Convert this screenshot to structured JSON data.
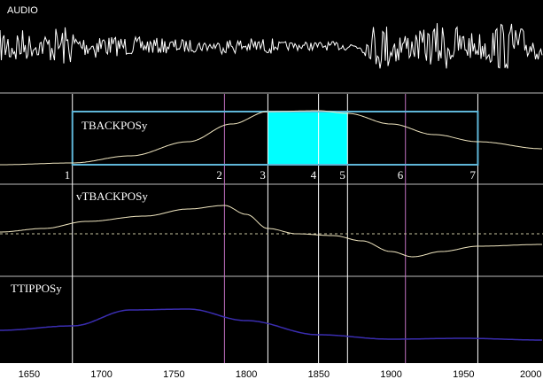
{
  "panes": {
    "audio": "AUDIO",
    "tback": "TBACKPOSy",
    "vtback": "vTBACKPOSy",
    "ttip": "TTIPPOSy"
  },
  "landmarks": [
    "1",
    "2",
    "3",
    "4",
    "5",
    "6",
    "7"
  ],
  "axis": {
    "range": [
      1630,
      2005
    ],
    "ticks": [
      "1650",
      "1700",
      "1750",
      "1800",
      "1850",
      "1900",
      "1950",
      "2000"
    ]
  },
  "landmark_times": [
    1680,
    1785,
    1815,
    1850,
    1870,
    1910,
    1960
  ],
  "selection": {
    "start": 1815,
    "end": 1870
  },
  "colors": {
    "background": "#000000",
    "audio": "#ffffff",
    "tback": "#f0e6c0",
    "ttip": "#3a2db0",
    "box": "#5fb6d8",
    "selection": "#00ffff",
    "marker_white": "#ffffff",
    "marker_pink": "#c070c0"
  }
}
